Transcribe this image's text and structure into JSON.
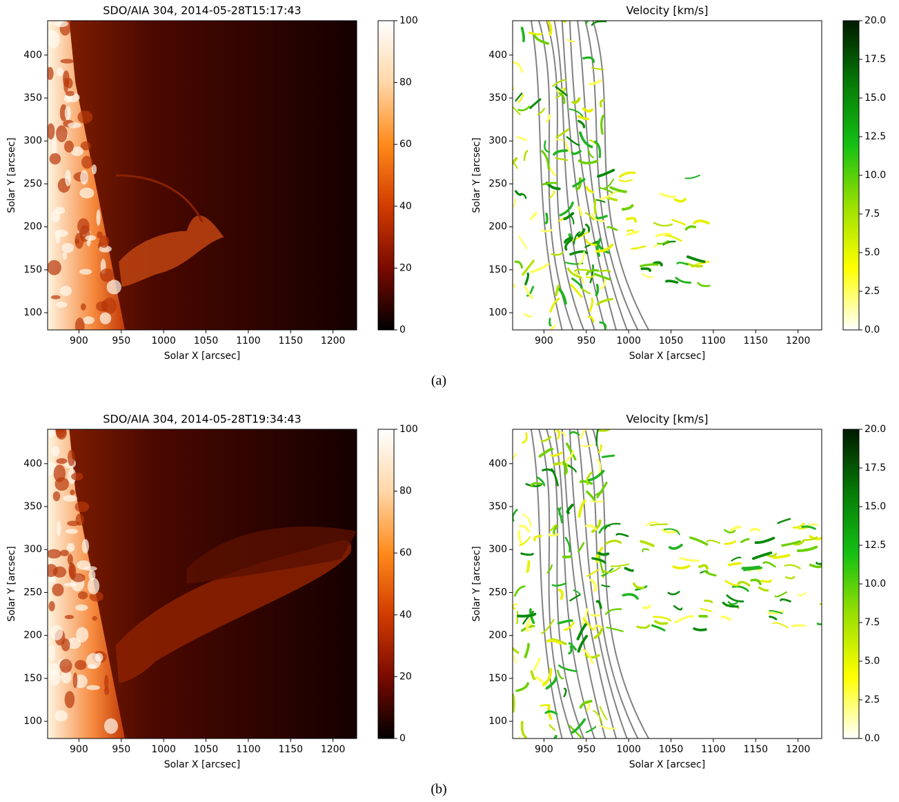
{
  "chart_data": [
    {
      "type": "image",
      "title": "SDO/AIA 304, 2014-05-28T15:17:43",
      "xlabel": "Solar X [arcsec]",
      "ylabel": "Solar Y [arcsec]",
      "xlim": [
        863,
        1228
      ],
      "ylim": [
        80,
        440
      ],
      "xticks": [
        900,
        950,
        1000,
        1050,
        1100,
        1150,
        1200
      ],
      "yticks": [
        100,
        150,
        200,
        250,
        300,
        350,
        400
      ],
      "colorbar": {
        "colors": [
          "#000000",
          "#7a0a00",
          "#d23c00",
          "#ff8a1a",
          "#ffd7a8",
          "#ffffff"
        ],
        "lim": [
          0,
          100
        ],
        "ticks": [
          0,
          20,
          40,
          60,
          80,
          100
        ]
      }
    },
    {
      "type": "streamlines",
      "title": "Velocity [km/s]",
      "xlabel": "Solar X [arcsec]",
      "ylabel": "Solar Y [arcsec]",
      "xlim": [
        863,
        1228
      ],
      "ylim": [
        80,
        440
      ],
      "xticks": [
        900,
        950,
        1000,
        1050,
        1100,
        1150,
        1200
      ],
      "yticks": [
        100,
        150,
        200,
        250,
        300,
        350,
        400
      ],
      "colorbar": {
        "colors": [
          "#ffffff",
          "#ffff00",
          "#9be000",
          "#14c014",
          "#067a06",
          "#001a00"
        ],
        "lim": [
          0,
          20
        ],
        "ticks": [
          {
            "value": 0,
            "label": "0.0"
          },
          {
            "value": 2.5,
            "label": "2.5"
          },
          {
            "value": 5,
            "label": "5.0"
          },
          {
            "value": 7.5,
            "label": "7.5"
          },
          {
            "value": 10,
            "label": "10.0"
          },
          {
            "value": 12.5,
            "label": "12.5"
          },
          {
            "value": 15,
            "label": "15.0"
          },
          {
            "value": 17.5,
            "label": "17.5"
          },
          {
            "value": 20,
            "label": "20.0"
          }
        ]
      }
    },
    {
      "type": "image",
      "title": "SDO/AIA 304, 2014-05-28T19:34:43",
      "xlabel": "Solar X [arcsec]",
      "ylabel": "Solar Y [arcsec]",
      "xlim": [
        863,
        1228
      ],
      "ylim": [
        80,
        440
      ],
      "xticks": [
        900,
        950,
        1000,
        1050,
        1100,
        1150,
        1200
      ],
      "yticks": [
        100,
        150,
        200,
        250,
        300,
        350,
        400
      ],
      "colorbar": {
        "colors": [
          "#000000",
          "#7a0a00",
          "#d23c00",
          "#ff8a1a",
          "#ffd7a8",
          "#ffffff"
        ],
        "lim": [
          0,
          100
        ],
        "ticks": [
          0,
          20,
          40,
          60,
          80,
          100
        ]
      }
    },
    {
      "type": "streamlines",
      "title": "Velocity [km/s]",
      "xlabel": "Solar X [arcsec]",
      "ylabel": "Solar Y [arcsec]",
      "xlim": [
        863,
        1228
      ],
      "ylim": [
        80,
        440
      ],
      "xticks": [
        900,
        950,
        1000,
        1050,
        1100,
        1150,
        1200
      ],
      "yticks": [
        100,
        150,
        200,
        250,
        300,
        350,
        400
      ],
      "colorbar": {
        "colors": [
          "#ffffff",
          "#ffff00",
          "#9be000",
          "#14c014",
          "#067a06",
          "#001a00"
        ],
        "lim": [
          0,
          20
        ],
        "ticks": [
          {
            "value": 0,
            "label": "0.0"
          },
          {
            "value": 2.5,
            "label": "2.5"
          },
          {
            "value": 5,
            "label": "5.0"
          },
          {
            "value": 7.5,
            "label": "7.5"
          },
          {
            "value": 10,
            "label": "10.0"
          },
          {
            "value": 12.5,
            "label": "12.5"
          },
          {
            "value": 15,
            "label": "15.0"
          },
          {
            "value": 17.5,
            "label": "17.5"
          },
          {
            "value": 20,
            "label": "20.0"
          }
        ]
      }
    }
  ],
  "captions": [
    "(a)",
    "(b)"
  ]
}
